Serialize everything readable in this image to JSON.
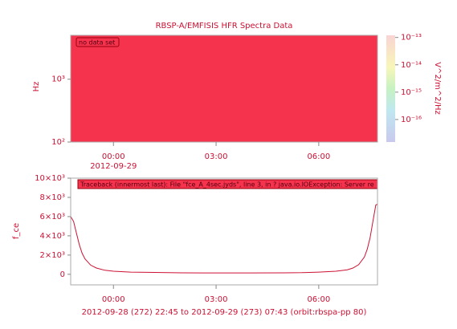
{
  "chart_data": [
    {
      "type": "spectrogram",
      "title": "RBSP-A/EMFISIS HFR Spectra Data",
      "ylabel": "Hz",
      "annotation": "no data set",
      "fill_color": "#f5334d",
      "ylog": true,
      "ylim": [
        100,
        5000
      ],
      "yticks": [
        {
          "value": 100,
          "label": "10²"
        },
        {
          "value": 1000,
          "label": "10³"
        }
      ],
      "xlim": [
        "2012-09-28 22:45",
        "2012-09-29 07:43"
      ],
      "xticks": [
        {
          "value": "2012-09-29 00:00",
          "label": "00:00"
        },
        {
          "value": "2012-09-29 03:00",
          "label": "03:00"
        },
        {
          "value": "2012-09-29 06:00",
          "label": "06:00"
        }
      ],
      "x_date_label": "2012-09-29",
      "zlabel": "V^2/m^2/Hz",
      "zlog": true,
      "zlim": [
        1.5e-17,
        1.2e-13
      ],
      "zticks": [
        {
          "value": 1e-16,
          "label": "10⁻¹⁶"
        },
        {
          "value": 1e-15,
          "label": "10⁻¹⁵"
        },
        {
          "value": 1e-14,
          "label": "10⁻¹⁴"
        },
        {
          "value": 1e-13,
          "label": "10⁻¹³"
        }
      ]
    },
    {
      "type": "line",
      "ylabel": "f_ce",
      "color": "#cc1133",
      "annotation": "Traceback (innermost last): File \"fce_A_4sec.jyds\", line 3, in ? java.io.IOException: Server re",
      "x": [
        "2012-09-28 22:45",
        "2012-09-28 22:50",
        "2012-09-28 22:55",
        "2012-09-28 23:00",
        "2012-09-28 23:05",
        "2012-09-28 23:10",
        "2012-09-28 23:20",
        "2012-09-28 23:30",
        "2012-09-28 23:45",
        "2012-09-29 00:00",
        "2012-09-29 00:30",
        "2012-09-29 01:00",
        "2012-09-29 02:00",
        "2012-09-29 03:00",
        "2012-09-29 04:00",
        "2012-09-29 05:00",
        "2012-09-29 05:30",
        "2012-09-29 06:00",
        "2012-09-29 06:30",
        "2012-09-29 06:50",
        "2012-09-29 07:00",
        "2012-09-29 07:10",
        "2012-09-29 07:20",
        "2012-09-29 07:25",
        "2012-09-29 07:30",
        "2012-09-29 07:35",
        "2012-09-29 07:40",
        "2012-09-29 07:43"
      ],
      "values": [
        6000,
        5500,
        4300,
        3100,
        2200,
        1600,
        950,
        650,
        420,
        320,
        230,
        200,
        150,
        140,
        140,
        150,
        170,
        230,
        320,
        470,
        650,
        1000,
        1800,
        2600,
        3800,
        5500,
        7200,
        7300
      ],
      "xlim": [
        "2012-09-28 22:45",
        "2012-09-29 07:43"
      ],
      "xticks": [
        {
          "value": "2012-09-29 00:00",
          "label": "00:00"
        },
        {
          "value": "2012-09-29 03:00",
          "label": "03:00"
        },
        {
          "value": "2012-09-29 06:00",
          "label": "06:00"
        }
      ],
      "ylim": [
        -1100,
        10000
      ],
      "yticks": [
        {
          "value": 0,
          "label": "0"
        },
        {
          "value": 2000,
          "label": "2×10³"
        },
        {
          "value": 4000,
          "label": "4×10³"
        },
        {
          "value": 6000,
          "label": "6×10³"
        },
        {
          "value": 8000,
          "label": "8×10³"
        },
        {
          "value": 10000,
          "label": "10×10³"
        }
      ],
      "xlabel": "2012-09-28 (272) 22:45 to 2012-09-29 (273) 07:43 (orbit:rbspa-pp 80)"
    }
  ]
}
